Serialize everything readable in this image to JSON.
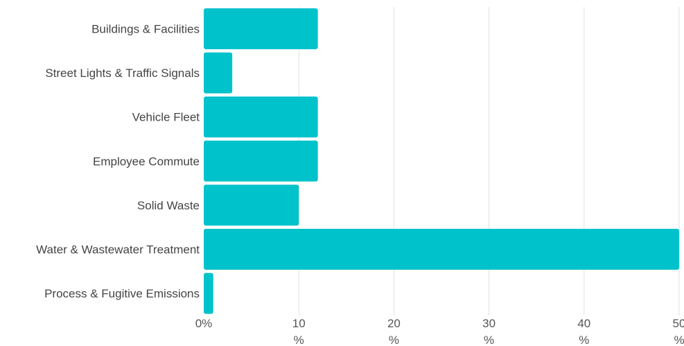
{
  "chart_data": {
    "type": "bar",
    "orientation": "horizontal",
    "categories": [
      "Buildings & Facilities",
      "Street Lights & Traffic Signals",
      "Vehicle Fleet",
      "Employee Commute",
      "Solid Waste",
      "Water & Wastewater Treatment",
      "Process & Fugitive Emissions"
    ],
    "values": [
      12,
      3,
      12,
      12,
      10,
      50,
      1
    ],
    "xlim": [
      0,
      50
    ],
    "xticks": [
      {
        "value": 0,
        "label": "0%",
        "suffix": ""
      },
      {
        "value": 10,
        "label": "10",
        "suffix": "%"
      },
      {
        "value": 20,
        "label": "20",
        "suffix": "%"
      },
      {
        "value": 30,
        "label": "30",
        "suffix": "%"
      },
      {
        "value": 40,
        "label": "40",
        "suffix": "%"
      },
      {
        "value": 50,
        "label": "50",
        "suffix": "%"
      }
    ],
    "title": "",
    "xlabel": "",
    "ylabel": "",
    "grid": "vertical",
    "legend": "none",
    "bar_color": "#00c2cb",
    "grid_color": "#e0e0e0"
  }
}
